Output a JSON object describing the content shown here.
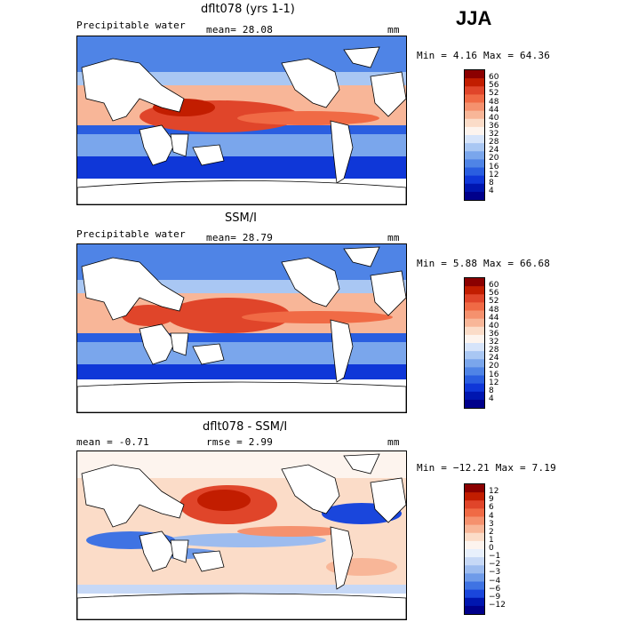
{
  "season": "JJA",
  "panels": [
    {
      "title": "dflt078 (yrs 1-1)",
      "left_label": "Precipitable water",
      "center_label": "mean=  28.08",
      "units": "mm",
      "range_label": "Min =   4.16 Max =  64.36",
      "colorbar": [
        "60",
        "56",
        "52",
        "48",
        "44",
        "40",
        "36",
        "32",
        "28",
        "24",
        "20",
        "16",
        "12",
        "8",
        "4"
      ]
    },
    {
      "title": "SSM/I",
      "left_label": "Precipitable water",
      "center_label": "mean=  28.79",
      "units": "mm",
      "range_label": "Min =   5.88 Max =  66.68",
      "colorbar": [
        "60",
        "56",
        "52",
        "48",
        "44",
        "40",
        "36",
        "32",
        "28",
        "24",
        "20",
        "16",
        "12",
        "8",
        "4"
      ]
    },
    {
      "title": "dflt078 - SSM/I",
      "left_label": "mean =   -0.71",
      "center_label": "rmse =    2.99",
      "units": "mm",
      "range_label": "Min = −12.21 Max =   7.19",
      "colorbar": [
        "12",
        "9",
        "6",
        "4",
        "3",
        "2",
        "1",
        "0",
        "−1",
        "−2",
        "−3",
        "−4",
        "−6",
        "−9",
        "−12"
      ]
    }
  ],
  "colors": {
    "field_scale": [
      "#8b0000",
      "#c21d00",
      "#e0452a",
      "#f06a45",
      "#f5916e",
      "#f8b698",
      "#fbdcc8",
      "#fdf4ee",
      "#d6e4fa",
      "#a9c7f3",
      "#7aa6ec",
      "#4f84e6",
      "#2a5ee0",
      "#0f37d8",
      "#0016b0",
      "#00008b"
    ],
    "diff_scale": [
      "#8b0000",
      "#c21d00",
      "#e0452a",
      "#f06a45",
      "#f5916e",
      "#f8b698",
      "#fbdcc8",
      "#fdf4ee",
      "#e8f0fc",
      "#c6d8f6",
      "#9dbcef",
      "#6f9be9",
      "#3f73e3",
      "#1a46dc",
      "#0016b0",
      "#00008b"
    ],
    "land": "#ffffff",
    "coast": "#000000"
  }
}
